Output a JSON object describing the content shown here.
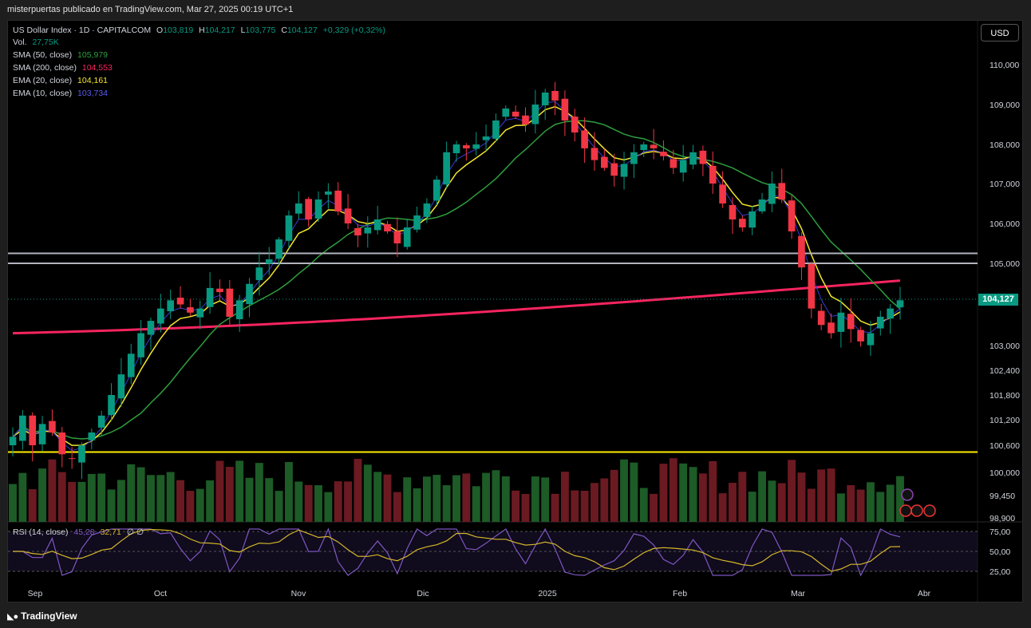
{
  "header": {
    "attribution": "misterpuertas publicado en TradingView.com, Mar 27, 2025 00:19 UTC+1"
  },
  "footer": {
    "brand": "TradingView"
  },
  "legend": {
    "symbol": "US Dollar Index · 1D · CAPITALCOM",
    "o_label": "O",
    "o": "103,819",
    "h_label": "H",
    "h": "104,217",
    "l_label": "L",
    "l": "103,775",
    "c_label": "C",
    "c": "104,127",
    "change": "+0,329 (+0,32%)",
    "vol_label": "Vol.",
    "vol": "27,75K",
    "sma50_label": "SMA (50, close)",
    "sma50": "105,979",
    "sma200_label": "SMA (200, close)",
    "sma200": "104,553",
    "ema20_label": "EMA (20, close)",
    "ema20": "104,161",
    "ema10_label": "EMA (10, close)",
    "ema10": "103,734"
  },
  "currency_button": "USD",
  "last_price": "104,127",
  "rsi_legend": {
    "label": "RSI (14, close)",
    "rsi": "45,28",
    "ma": "32,71",
    "extra": "∅ ∅"
  },
  "colors": {
    "up": "#089981",
    "down": "#f23645",
    "vol_up": "#1d5b27",
    "vol_down": "#6b1a22",
    "sma50": "#2e9e3d",
    "sma200": "#f7245f",
    "ema20": "#f5e52c",
    "ema10": "#3b3bd6",
    "rsi": "#7e57c2",
    "rsi_ma": "#d4b72c",
    "hline_white": "#b2b5be",
    "hline_yellow": "#ffee00"
  },
  "chart_data": {
    "type": "candlestick",
    "x_ticks": [
      "Sep",
      "Oct",
      "Nov",
      "Dic",
      "2025",
      "Feb",
      "Mar",
      "Abr"
    ],
    "y_ticks": [
      "110,000",
      "109,000",
      "108,000",
      "107,000",
      "106,000",
      "105,000",
      "103,000",
      "102,400",
      "101,800",
      "101,200",
      "100,600",
      "100,000",
      "99,450",
      "98,900"
    ],
    "rsi_ticks": [
      "75,00",
      "50,00",
      "25,00"
    ],
    "horizontal_levels": [
      {
        "value": 105.25,
        "color": "white"
      },
      {
        "value": 105.0,
        "color": "white"
      },
      {
        "value": 100.45,
        "color": "yellow"
      }
    ],
    "ohlc_monthly_path_close": [
      100.8,
      101.3,
      100.6,
      101.1,
      100.9,
      100.4,
      100.3,
      100.6,
      100.9,
      101.3,
      101.8,
      102.3,
      102.8,
      103.3,
      103.6,
      103.9,
      104.1,
      104.0,
      103.8,
      103.9,
      104.4,
      104.3,
      103.7,
      104.1,
      104.5,
      104.9,
      105.1,
      105.6,
      106.2,
      106.5,
      106.1,
      106.6,
      106.8,
      106.3,
      106.0,
      105.7,
      105.9,
      106.1,
      105.8,
      105.5,
      105.9,
      106.2,
      106.5,
      107.1,
      107.8,
      108.0,
      107.9,
      108.0,
      108.2,
      108.6,
      108.9,
      108.7,
      108.5,
      109.0,
      109.3,
      109.1,
      108.6,
      108.3,
      107.9,
      107.6,
      107.4,
      107.2,
      107.5,
      107.8,
      108.0,
      107.9,
      107.7,
      107.4,
      107.6,
      107.8,
      107.5,
      107.0,
      106.5,
      106.1,
      105.9,
      106.3,
      106.6,
      107.0,
      106.6,
      105.8,
      104.9,
      103.9,
      103.5,
      103.3,
      103.8,
      103.4,
      103.1,
      103.3,
      103.7,
      103.9,
      104.1
    ],
    "ema10_last": 103.734,
    "ema20_last": 104.161,
    "sma50_last": 105.979,
    "sma200_last": 104.553,
    "volume_last": "27,75K",
    "rsi_last": 45.28,
    "rsi_ma_last": 32.71
  }
}
